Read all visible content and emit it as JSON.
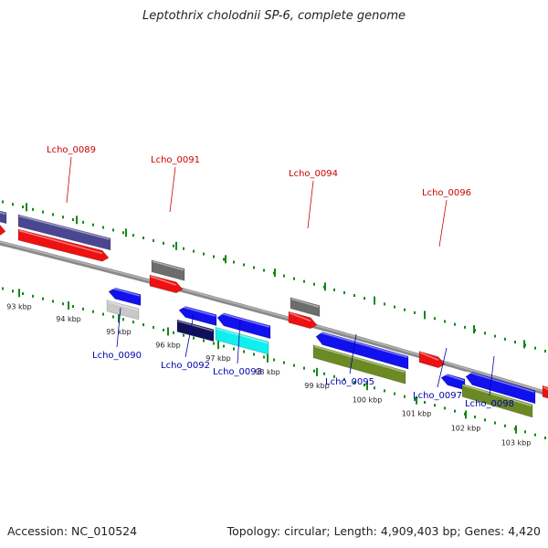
{
  "title": "Leptothrix cholodnii SP-6, complete genome",
  "footer": {
    "accession": "Accession: NC_010524",
    "summary": "Topology: circular; Length: 4,909,403 bp; Genes: 4,420"
  },
  "colors": {
    "forward_cds": "#ee1111",
    "reverse_cds": "#1111ee",
    "backbone": "#8a8a8a",
    "tick": "#118811",
    "label_forward": "#cc0000",
    "label_reverse": "#0000aa",
    "feature_purple": "#4a4690",
    "feature_gray": "#6c6c6c",
    "feature_navy": "#10105a",
    "feature_cyan": "#11eeee",
    "feature_olive": "#6b8a23",
    "feature_lightgray": "#c8c8c8"
  },
  "scale": {
    "labels": [
      "93 kbp",
      "94 kbp",
      "95 kbp",
      "96 kbp",
      "97 kbp",
      "98 kbp",
      "99 kbp",
      "100 kbp",
      "101 kbp",
      "102 kbp",
      "103 kbp"
    ]
  },
  "gene_labels": {
    "forward": [
      "Lcho_0089",
      "Lcho_0091",
      "Lcho_0094",
      "Lcho_0096"
    ],
    "reverse": [
      "Lcho_0090",
      "Lcho_0092",
      "Lcho_0093",
      "Lcho_0095",
      "Lcho_0097",
      "Lcho_0098"
    ]
  }
}
